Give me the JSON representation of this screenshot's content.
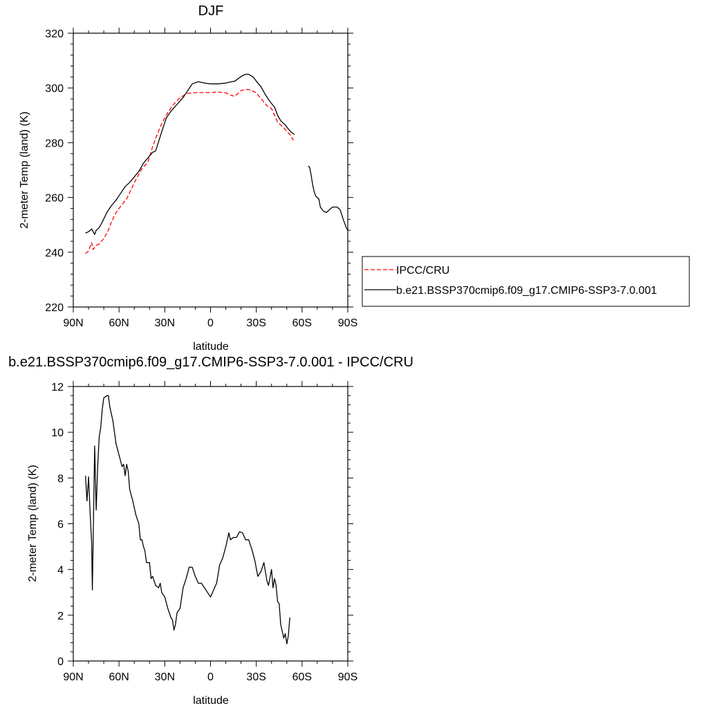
{
  "chart_data": [
    {
      "type": "line",
      "title": "DJF",
      "xlabel": "latitude",
      "ylabel": "2-meter Temp (land) (K)",
      "xlim": [
        90,
        -90
      ],
      "ylim": [
        220,
        320
      ],
      "x_ticks": [
        90,
        60,
        30,
        0,
        -30,
        -60,
        -90
      ],
      "x_tick_labels": [
        "90N",
        "60N",
        "30N",
        "0",
        "30S",
        "60S",
        "90S"
      ],
      "y_ticks": [
        220,
        240,
        260,
        280,
        300,
        320
      ],
      "y_tick_labels": [
        "220",
        "240",
        "260",
        "280",
        "300",
        "320"
      ],
      "legend_position": "right",
      "series": [
        {
          "name": "IPCC/CRU",
          "color": "#ff0000",
          "style": "dashed",
          "segments": [
            [
              [
                82,
                239.5
              ],
              [
                80,
                240.5
              ],
              [
                78,
                243.5
              ],
              [
                77,
                241
              ],
              [
                75,
                242.5
              ],
              [
                73,
                243
              ],
              [
                70,
                245
              ],
              [
                67,
                248
              ],
              [
                65,
                251
              ],
              [
                62,
                254.5
              ],
              [
                58,
                257.5
              ],
              [
                55,
                259.5
              ],
              [
                52,
                263
              ],
              [
                49,
                266.5
              ],
              [
                45,
                270.5
              ],
              [
                41,
                273
              ],
              [
                38,
                278.5
              ],
              [
                35,
                283
              ],
              [
                32,
                287
              ],
              [
                28,
                291
              ],
              [
                25,
                293.5
              ],
              [
                20,
                296.5
              ],
              [
                15,
                298
              ],
              [
                10,
                298.3
              ],
              [
                5,
                298.3
              ],
              [
                0,
                298.3
              ],
              [
                -5,
                298.5
              ],
              [
                -10,
                298.2
              ],
              [
                -14,
                297.2
              ],
              [
                -16,
                297
              ],
              [
                -18,
                298
              ],
              [
                -20,
                299
              ],
              [
                -23,
                299.5
              ],
              [
                -26,
                299.3
              ],
              [
                -29,
                298.5
              ],
              [
                -31,
                297.5
              ],
              [
                -34,
                295.5
              ],
              [
                -37,
                293.5
              ],
              [
                -40,
                292.5
              ],
              [
                -42,
                290
              ],
              [
                -44,
                287.5
              ],
              [
                -47,
                286
              ],
              [
                -49,
                284.8
              ],
              [
                -51,
                283.5
              ],
              [
                -53,
                282.5
              ],
              [
                -54,
                281
              ],
              [
                -55,
                282
              ]
            ]
          ]
        },
        {
          "name": "b.e21.BSSP370cmip6.f09_g17.CMIP6-SSP3-7.0.001",
          "color": "#000000",
          "style": "solid",
          "segments": [
            [
              [
                82,
                247
              ],
              [
                80,
                247.5
              ],
              [
                78,
                248.5
              ],
              [
                76,
                246.5
              ],
              [
                75,
                248
              ],
              [
                73,
                249
              ],
              [
                71,
                251
              ],
              [
                68,
                254.5
              ],
              [
                65,
                257
              ],
              [
                62,
                259
              ],
              [
                59,
                261.5
              ],
              [
                56,
                264
              ],
              [
                53,
                265.5
              ],
              [
                50,
                267.5
              ],
              [
                47,
                269.5
              ],
              [
                44,
                272.5
              ],
              [
                41,
                274.5
              ],
              [
                38,
                276.5
              ],
              [
                36,
                277
              ],
              [
                34,
                280.5
              ],
              [
                32,
                284
              ],
              [
                29,
                289
              ],
              [
                26,
                291.5
              ],
              [
                22,
                294
              ],
              [
                18,
                296.5
              ],
              [
                15,
                299
              ],
              [
                12,
                301.5
              ],
              [
                8,
                302.3
              ],
              [
                4,
                301.8
              ],
              [
                0,
                301.5
              ],
              [
                -5,
                301.5
              ],
              [
                -10,
                301.8
              ],
              [
                -14,
                302.3
              ],
              [
                -16,
                302.5
              ],
              [
                -19,
                303.8
              ],
              [
                -21,
                304.5
              ],
              [
                -23,
                305
              ],
              [
                -25,
                305
              ],
              [
                -28,
                304
              ],
              [
                -30,
                302.5
              ],
              [
                -33,
                300.5
              ],
              [
                -36,
                297.5
              ],
              [
                -39,
                295
              ],
              [
                -42,
                293
              ],
              [
                -44,
                290
              ],
              [
                -46,
                288
              ],
              [
                -49,
                286.5
              ],
              [
                -51,
                285
              ],
              [
                -53,
                283.8
              ],
              [
                -55,
                283
              ]
            ],
            [
              [
                -64,
                271.5
              ],
              [
                -65,
                271
              ],
              [
                -66,
                268
              ],
              [
                -67,
                264.5
              ],
              [
                -68,
                262
              ],
              [
                -69,
                260.5
              ],
              [
                -71,
                259.5
              ],
              [
                -72,
                256.5
              ],
              [
                -74,
                255
              ],
              [
                -76,
                254.5
              ],
              [
                -78,
                255.5
              ],
              [
                -80,
                256.5
              ],
              [
                -83,
                256.5
              ],
              [
                -85,
                255.5
              ],
              [
                -87,
                252
              ],
              [
                -89,
                249
              ],
              [
                -90,
                248
              ]
            ]
          ]
        }
      ]
    },
    {
      "type": "line",
      "title": "b.e21.BSSP370cmip6.f09_g17.CMIP6-SSP3-7.0.001 - IPCC/CRU",
      "xlabel": "latitude",
      "ylabel": "2-meter Temp (land) (K)",
      "xlim": [
        90,
        -90
      ],
      "ylim": [
        0,
        12
      ],
      "x_ticks": [
        90,
        60,
        30,
        0,
        -30,
        -60,
        -90
      ],
      "x_tick_labels": [
        "90N",
        "60N",
        "30N",
        "0",
        "30S",
        "60S",
        "90S"
      ],
      "y_ticks": [
        0,
        2,
        4,
        6,
        8,
        10,
        12
      ],
      "y_tick_labels": [
        "0",
        "2",
        "4",
        "6",
        "8",
        "10",
        "12"
      ],
      "series": [
        {
          "color": "#000000",
          "style": "solid",
          "segments": [
            [
              [
                82,
                8.1
              ],
              [
                81,
                7
              ],
              [
                80,
                8.05
              ],
              [
                79,
                6.5
              ],
              [
                78,
                5.2
              ],
              [
                77.5,
                3.1
              ],
              [
                76,
                9.4
              ],
              [
                75,
                6.6
              ],
              [
                74,
                8.5
              ],
              [
                73,
                9.8
              ],
              [
                72,
                10.2
              ],
              [
                71,
                11
              ],
              [
                70,
                11.5
              ],
              [
                68,
                11.6
              ],
              [
                67,
                11.6
              ],
              [
                66,
                11.1
              ],
              [
                64,
                10.5
              ],
              [
                62,
                9.5
              ],
              [
                60,
                9
              ],
              [
                58,
                8.5
              ],
              [
                57,
                8.6
              ],
              [
                56,
                8.1
              ],
              [
                55,
                8.6
              ],
              [
                54,
                8.3
              ],
              [
                53,
                7.5
              ],
              [
                51,
                7
              ],
              [
                49,
                6.4
              ],
              [
                47,
                6
              ],
              [
                46,
                5.3
              ],
              [
                45,
                5.3
              ],
              [
                44,
                5
              ],
              [
                43,
                4.8
              ],
              [
                42,
                4.3
              ],
              [
                40,
                4.3
              ],
              [
                39,
                3.6
              ],
              [
                38,
                3.7
              ],
              [
                36,
                3.3
              ],
              [
                34,
                3.2
              ],
              [
                33,
                3.4
              ],
              [
                32,
                3
              ],
              [
                30,
                2.8
              ],
              [
                28,
                2.3
              ],
              [
                26,
                1.9
              ],
              [
                25,
                1.8
              ],
              [
                24,
                1.35
              ],
              [
                23,
                1.6
              ],
              [
                22,
                2.1
              ],
              [
                20,
                2.3
              ],
              [
                18,
                3.2
              ],
              [
                16,
                3.6
              ],
              [
                14,
                4.1
              ],
              [
                12,
                4.1
              ],
              [
                10,
                3.7
              ],
              [
                8,
                3.4
              ],
              [
                6,
                3.4
              ],
              [
                4,
                3.2
              ],
              [
                2,
                3
              ],
              [
                0,
                2.8
              ],
              [
                -2,
                3.1
              ],
              [
                -4,
                3.4
              ],
              [
                -6,
                4.2
              ],
              [
                -8,
                4.5
              ],
              [
                -10,
                5
              ],
              [
                -12,
                5.6
              ],
              [
                -13,
                5.3
              ],
              [
                -15,
                5.4
              ],
              [
                -17,
                5.4
              ],
              [
                -19,
                5.65
              ],
              [
                -21,
                5.6
              ],
              [
                -23,
                5.3
              ],
              [
                -25,
                5.3
              ],
              [
                -27,
                4.9
              ],
              [
                -29,
                4.4
              ],
              [
                -31,
                3.7
              ],
              [
                -33,
                3.9
              ],
              [
                -35,
                4.3
              ],
              [
                -37,
                3.5
              ],
              [
                -38,
                3.3
              ],
              [
                -40,
                4
              ],
              [
                -41,
                3.2
              ],
              [
                -42,
                3.6
              ],
              [
                -43,
                3.3
              ],
              [
                -44,
                2.6
              ],
              [
                -45,
                2.5
              ],
              [
                -46,
                1.6
              ],
              [
                -47,
                1.3
              ],
              [
                -48,
                1.0
              ],
              [
                -49,
                1.2
              ],
              [
                -50,
                0.75
              ],
              [
                -51,
                1.1
              ],
              [
                -52,
                1.9
              ]
            ]
          ]
        }
      ]
    }
  ]
}
